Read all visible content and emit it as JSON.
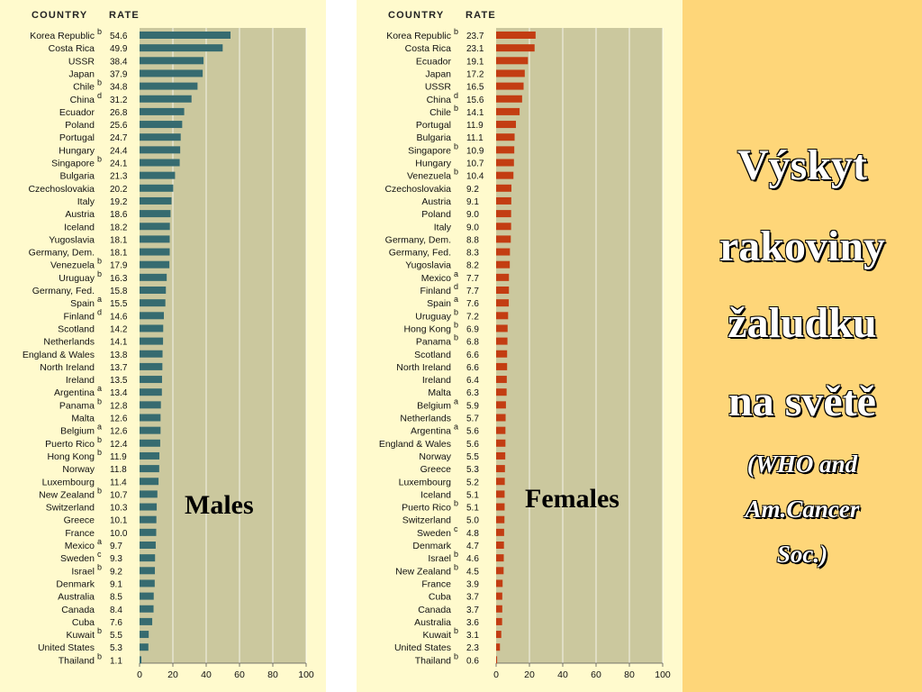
{
  "slide": {
    "title_lines": [
      "Výskyt",
      "rakoviny",
      "žaludku",
      "na světě"
    ],
    "subtitle_lines": [
      "(WHO and",
      "Am.Cancer",
      "Soc.)"
    ],
    "colors": {
      "background": "#ffffff",
      "panel": "#fffacd",
      "plot": "#cbc89e",
      "accent": "#fed679",
      "male_bar": "#366b70",
      "female_bar": "#c33d12"
    }
  },
  "chart_data": [
    {
      "type": "bar",
      "orientation": "horizontal",
      "header_country": "COUNTRY",
      "header_rate": "RATE",
      "series_label": "Males",
      "xlim": [
        0,
        100
      ],
      "xticks": [
        0,
        20,
        40,
        60,
        80,
        100
      ],
      "grid": true,
      "bar_color": "#366b70",
      "rows": [
        {
          "country": "Korea Republic",
          "note": "b",
          "value": 54.6
        },
        {
          "country": "Costa Rica",
          "note": "",
          "value": 49.9
        },
        {
          "country": "USSR",
          "note": "",
          "value": 38.4
        },
        {
          "country": "Japan",
          "note": "",
          "value": 37.9
        },
        {
          "country": "Chile",
          "note": "b",
          "value": 34.8
        },
        {
          "country": "China",
          "note": "d",
          "value": 31.2
        },
        {
          "country": "Ecuador",
          "note": "",
          "value": 26.8
        },
        {
          "country": "Poland",
          "note": "",
          "value": 25.6
        },
        {
          "country": "Portugal",
          "note": "",
          "value": 24.7
        },
        {
          "country": "Hungary",
          "note": "",
          "value": 24.4
        },
        {
          "country": "Singapore",
          "note": "b",
          "value": 24.1
        },
        {
          "country": "Bulgaria",
          "note": "",
          "value": 21.3
        },
        {
          "country": "Czechoslovakia",
          "note": "",
          "value": 20.2
        },
        {
          "country": "Italy",
          "note": "",
          "value": 19.2
        },
        {
          "country": "Austria",
          "note": "",
          "value": 18.6
        },
        {
          "country": "Iceland",
          "note": "",
          "value": 18.2
        },
        {
          "country": "Yugoslavia",
          "note": "",
          "value": 18.1
        },
        {
          "country": "Germany, Dem.",
          "note": "",
          "value": 18.1
        },
        {
          "country": "Venezuela",
          "note": "b",
          "value": 17.9
        },
        {
          "country": "Uruguay",
          "note": "b",
          "value": 16.3
        },
        {
          "country": "Germany, Fed.",
          "note": "",
          "value": 15.8
        },
        {
          "country": "Spain",
          "note": "a",
          "value": 15.5
        },
        {
          "country": "Finland",
          "note": "d",
          "value": 14.6
        },
        {
          "country": "Scotland",
          "note": "",
          "value": 14.2
        },
        {
          "country": "Netherlands",
          "note": "",
          "value": 14.1
        },
        {
          "country": "England & Wales",
          "note": "",
          "value": 13.8
        },
        {
          "country": "North Ireland",
          "note": "",
          "value": 13.7
        },
        {
          "country": "Ireland",
          "note": "",
          "value": 13.5
        },
        {
          "country": "Argentina",
          "note": "a",
          "value": 13.4
        },
        {
          "country": "Panama",
          "note": "b",
          "value": 12.8
        },
        {
          "country": "Malta",
          "note": "",
          "value": 12.6
        },
        {
          "country": "Belgium",
          "note": "a",
          "value": 12.6
        },
        {
          "country": "Puerto Rico",
          "note": "b",
          "value": 12.4
        },
        {
          "country": "Hong Kong",
          "note": "b",
          "value": 11.9
        },
        {
          "country": "Norway",
          "note": "",
          "value": 11.8
        },
        {
          "country": "Luxembourg",
          "note": "",
          "value": 11.4
        },
        {
          "country": "New Zealand",
          "note": "b",
          "value": 10.7
        },
        {
          "country": "Switzerland",
          "note": "",
          "value": 10.3
        },
        {
          "country": "Greece",
          "note": "",
          "value": 10.1
        },
        {
          "country": "France",
          "note": "",
          "value": 10.0
        },
        {
          "country": "Mexico",
          "note": "a",
          "value": 9.7
        },
        {
          "country": "Sweden",
          "note": "c",
          "value": 9.3
        },
        {
          "country": "Israel",
          "note": "b",
          "value": 9.2
        },
        {
          "country": "Denmark",
          "note": "",
          "value": 9.1
        },
        {
          "country": "Australia",
          "note": "",
          "value": 8.5
        },
        {
          "country": "Canada",
          "note": "",
          "value": 8.4
        },
        {
          "country": "Cuba",
          "note": "",
          "value": 7.6
        },
        {
          "country": "Kuwait",
          "note": "b",
          "value": 5.5
        },
        {
          "country": "United States",
          "note": "",
          "value": 5.3
        },
        {
          "country": "Thailand",
          "note": "b",
          "value": 1.1
        }
      ]
    },
    {
      "type": "bar",
      "orientation": "horizontal",
      "header_country": "COUNTRY",
      "header_rate": "RATE",
      "series_label": "Females",
      "xlim": [
        0,
        100
      ],
      "xticks": [
        0,
        20,
        40,
        60,
        80,
        100
      ],
      "grid": true,
      "bar_color": "#c33d12",
      "rows": [
        {
          "country": "Korea Republic",
          "note": "b",
          "value": 23.7
        },
        {
          "country": "Costa Rica",
          "note": "",
          "value": 23.1
        },
        {
          "country": "Ecuador",
          "note": "",
          "value": 19.1
        },
        {
          "country": "Japan",
          "note": "",
          "value": 17.2
        },
        {
          "country": "USSR",
          "note": "",
          "value": 16.5
        },
        {
          "country": "China",
          "note": "d",
          "value": 15.6
        },
        {
          "country": "Chile",
          "note": "b",
          "value": 14.1
        },
        {
          "country": "Portugal",
          "note": "",
          "value": 11.9
        },
        {
          "country": "Bulgaria",
          "note": "",
          "value": 11.1
        },
        {
          "country": "Singapore",
          "note": "b",
          "value": 10.9
        },
        {
          "country": "Hungary",
          "note": "",
          "value": 10.7
        },
        {
          "country": "Venezuela",
          "note": "b",
          "value": 10.4
        },
        {
          "country": "Czechoslovakia",
          "note": "",
          "value": 9.2
        },
        {
          "country": "Austria",
          "note": "",
          "value": 9.1
        },
        {
          "country": "Poland",
          "note": "",
          "value": 9.0
        },
        {
          "country": "Italy",
          "note": "",
          "value": 9.0
        },
        {
          "country": "Germany, Dem.",
          "note": "",
          "value": 8.8
        },
        {
          "country": "Germany, Fed.",
          "note": "",
          "value": 8.3
        },
        {
          "country": "Yugoslavia",
          "note": "",
          "value": 8.2
        },
        {
          "country": "Mexico",
          "note": "a",
          "value": 7.7
        },
        {
          "country": "Finland",
          "note": "d",
          "value": 7.7
        },
        {
          "country": "Spain",
          "note": "a",
          "value": 7.6
        },
        {
          "country": "Uruguay",
          "note": "b",
          "value": 7.2
        },
        {
          "country": "Hong Kong",
          "note": "b",
          "value": 6.9
        },
        {
          "country": "Panama",
          "note": "b",
          "value": 6.8
        },
        {
          "country": "Scotland",
          "note": "",
          "value": 6.6
        },
        {
          "country": "North Ireland",
          "note": "",
          "value": 6.6
        },
        {
          "country": "Ireland",
          "note": "",
          "value": 6.4
        },
        {
          "country": "Malta",
          "note": "",
          "value": 6.3
        },
        {
          "country": "Belgium",
          "note": "a",
          "value": 5.9
        },
        {
          "country": "Netherlands",
          "note": "",
          "value": 5.7
        },
        {
          "country": "Argentina",
          "note": "a",
          "value": 5.6
        },
        {
          "country": "England & Wales",
          "note": "",
          "value": 5.6
        },
        {
          "country": "Norway",
          "note": "",
          "value": 5.5
        },
        {
          "country": "Greece",
          "note": "",
          "value": 5.3
        },
        {
          "country": "Luxembourg",
          "note": "",
          "value": 5.2
        },
        {
          "country": "Iceland",
          "note": "",
          "value": 5.1
        },
        {
          "country": "Puerto Rico",
          "note": "b",
          "value": 5.1
        },
        {
          "country": "Switzerland",
          "note": "",
          "value": 5.0
        },
        {
          "country": "Sweden",
          "note": "c",
          "value": 4.8
        },
        {
          "country": "Denmark",
          "note": "",
          "value": 4.7
        },
        {
          "country": "Israel",
          "note": "b",
          "value": 4.6
        },
        {
          "country": "New Zealand",
          "note": "b",
          "value": 4.5
        },
        {
          "country": "France",
          "note": "",
          "value": 3.9
        },
        {
          "country": "Cuba",
          "note": "",
          "value": 3.7
        },
        {
          "country": "Canada",
          "note": "",
          "value": 3.7
        },
        {
          "country": "Australia",
          "note": "",
          "value": 3.6
        },
        {
          "country": "Kuwait",
          "note": "b",
          "value": 3.1
        },
        {
          "country": "United States",
          "note": "",
          "value": 2.3
        },
        {
          "country": "Thailand",
          "note": "b",
          "value": 0.6
        }
      ]
    }
  ]
}
